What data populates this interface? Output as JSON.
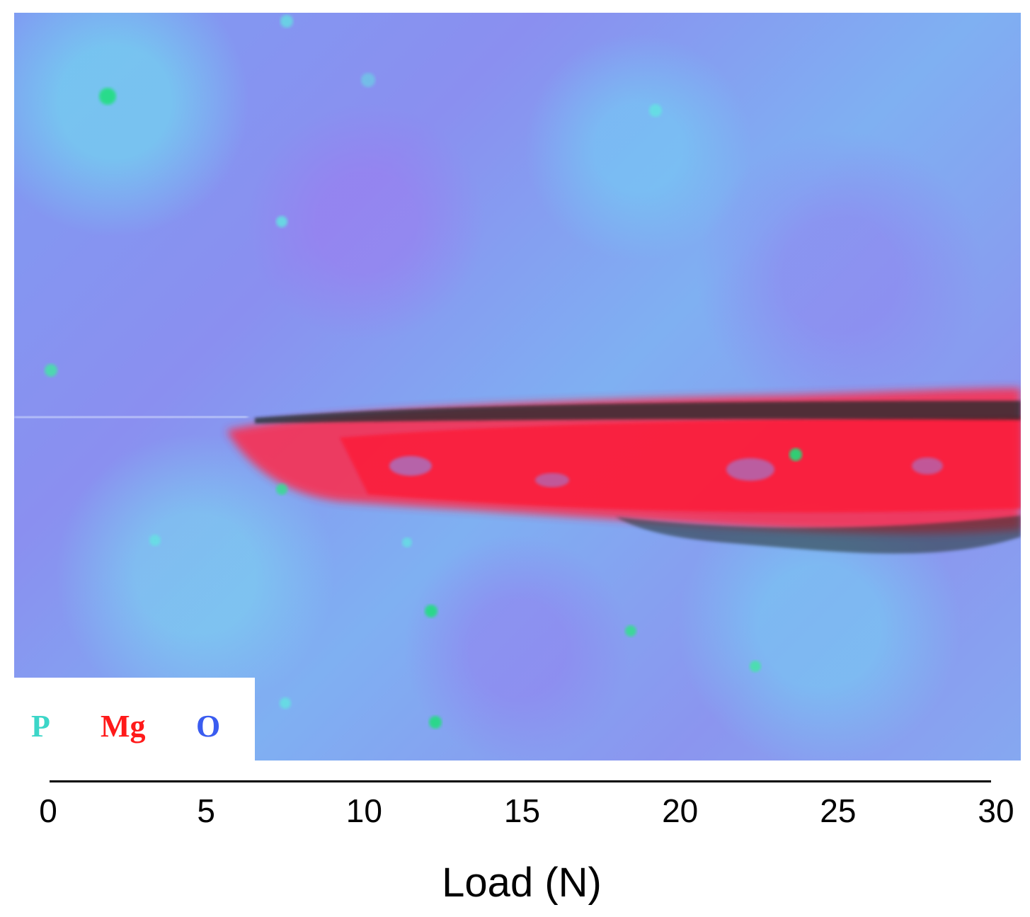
{
  "legend": {
    "items": [
      {
        "label": "P",
        "color": "#3cd6c8"
      },
      {
        "label": "Mg",
        "color": "#ff1a1a"
      },
      {
        "label": "O",
        "color": "#3a5cf0"
      }
    ]
  },
  "axis": {
    "ticks": [
      "0",
      "5",
      "10",
      "15",
      "20",
      "25",
      "30"
    ],
    "title": "Load (N)",
    "range": [
      0,
      30
    ]
  },
  "colors": {
    "background_blue": "#8a95f0",
    "particle_cyan": "#60e8e0",
    "particle_green": "#1fe07a",
    "scratch_red": "#ff2a4a",
    "scratch_dark": "#1a2a2a"
  }
}
